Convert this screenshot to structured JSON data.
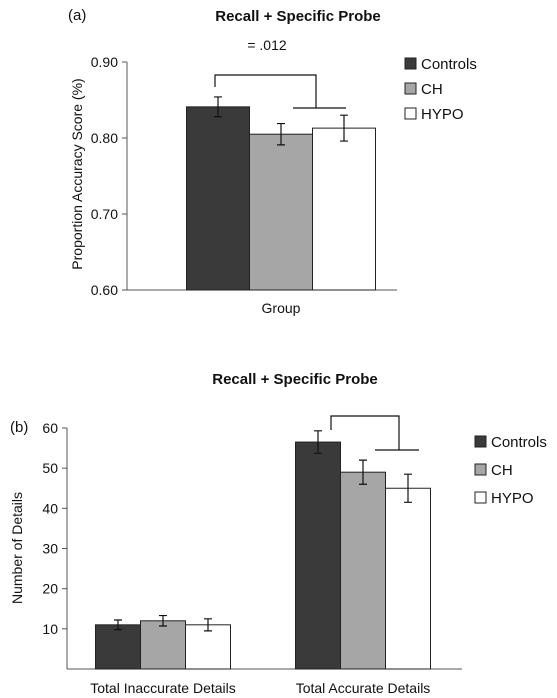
{
  "chart_data": [
    {
      "type": "bar",
      "panel_label": "(a)",
      "title": "Recall + Specific Probe",
      "xlabel": "Group",
      "ylabel": "Proportion Accuracy Score (%)",
      "ylim": [
        0.6,
        0.9
      ],
      "yticks": [
        "0.60",
        "0.70",
        "0.80",
        "0.90"
      ],
      "categories": [
        ""
      ],
      "series": [
        {
          "name": "Controls",
          "color": "#3a3a3a",
          "values": [
            0.841
          ],
          "errors": [
            0.013
          ]
        },
        {
          "name": "CH",
          "color": "#a6a6a6",
          "values": [
            0.805
          ],
          "errors": [
            0.014
          ]
        },
        {
          "name": "HYPO",
          "color": "#ffffff",
          "values": [
            0.813
          ],
          "errors": [
            0.017
          ]
        }
      ],
      "annotation": "= .012",
      "legend": "right",
      "grid": false
    },
    {
      "type": "bar",
      "panel_label": "(b)",
      "title": "Recall + Specific Probe",
      "xlabel": "",
      "ylabel": "Number of Details",
      "ylim": [
        0,
        60
      ],
      "yticks": [
        "10",
        "20",
        "30",
        "40",
        "50",
        "60"
      ],
      "categories": [
        "Total Inaccurate Details",
        "Total Accurate Details"
      ],
      "series": [
        {
          "name": "Controls",
          "color": "#3a3a3a",
          "values": [
            11,
            56.5
          ],
          "errors": [
            1.2,
            2.8
          ]
        },
        {
          "name": "CH",
          "color": "#a6a6a6",
          "values": [
            12,
            49
          ],
          "errors": [
            1.3,
            3.0
          ]
        },
        {
          "name": "HYPO",
          "color": "#ffffff",
          "values": [
            11,
            45
          ],
          "errors": [
            1.5,
            3.5
          ]
        }
      ],
      "legend": "right",
      "grid": false
    }
  ]
}
